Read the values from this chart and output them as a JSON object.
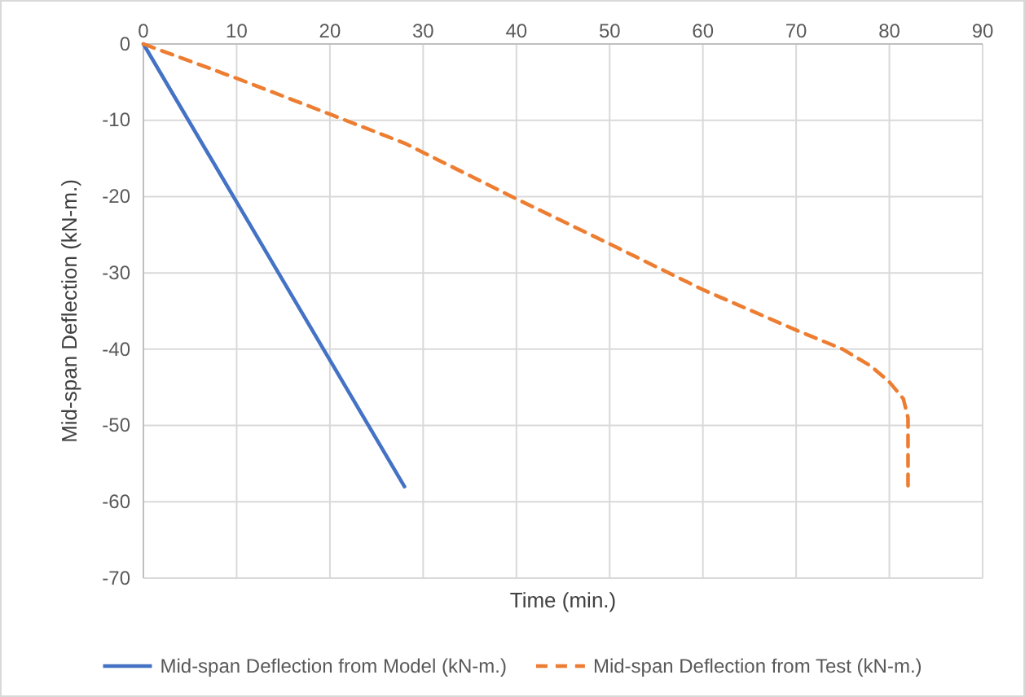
{
  "chart_data": {
    "type": "line",
    "xlabel": "Time (min.)",
    "ylabel": "Mid-span Deflection (kN-m.)",
    "xlim": [
      0,
      90
    ],
    "xticks": [
      0,
      10,
      20,
      30,
      40,
      50,
      60,
      70,
      80,
      90
    ],
    "ylim": [
      -70,
      0
    ],
    "yticks": [
      -70,
      -60,
      -50,
      -40,
      -30,
      -20,
      -10,
      0
    ],
    "grid": true,
    "legend": "bottom",
    "series": [
      {
        "name": "Mid-span Deflection from Model (kN-m.)",
        "color": "#4472c4",
        "line_style": "solid",
        "x": [
          0,
          28
        ],
        "values": [
          0,
          -58
        ]
      },
      {
        "name": "Mid-span Deflection from Test (kN-m.)",
        "color": "#ed7d31",
        "line_style": "dashed",
        "x": [
          0,
          10,
          20,
          28,
          40,
          50,
          60,
          70,
          75,
          78,
          80,
          81.5,
          82,
          82,
          82
        ],
        "values": [
          0,
          -4.5,
          -9.2,
          -13,
          -20.3,
          -26.2,
          -32.2,
          -37.5,
          -40,
          -42.2,
          -44.3,
          -46.5,
          -49,
          -54,
          -58
        ]
      }
    ]
  }
}
